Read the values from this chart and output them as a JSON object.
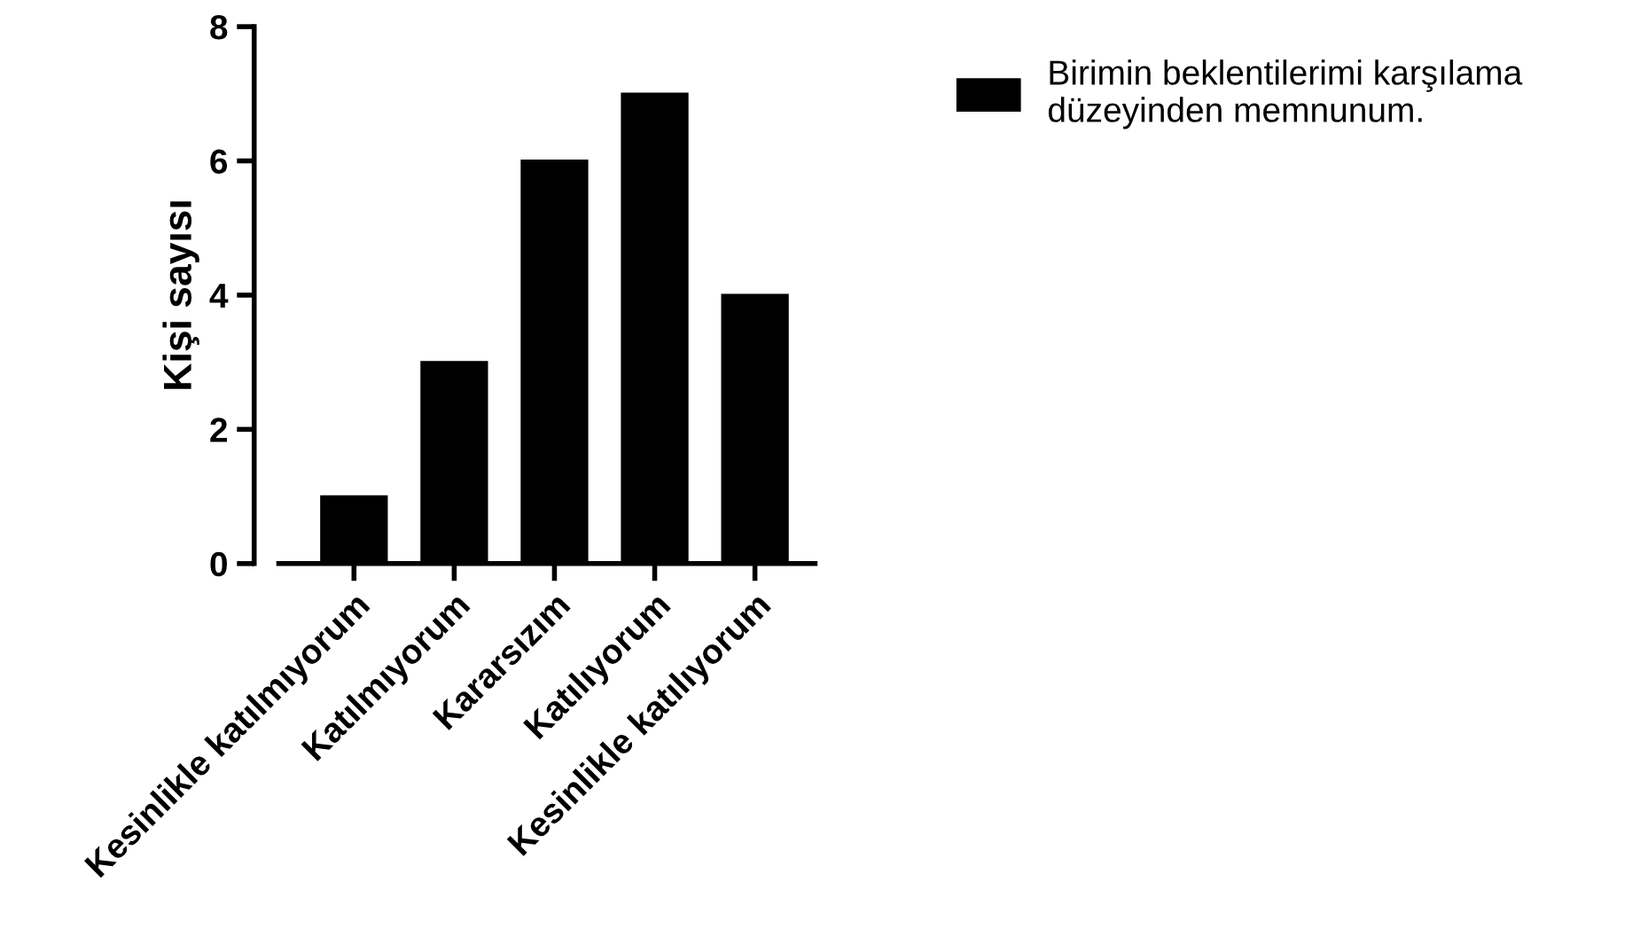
{
  "chart_data": {
    "type": "bar",
    "categories": [
      "Kesinlikle katılmıyorum",
      "Katılmıyorum",
      "Kararsızım",
      "Katılıyorum",
      "Kesinlikle katılıyorum"
    ],
    "series": [
      {
        "name": "Birimin beklentilerimi karşılama\ndüzeyinden memnunum.",
        "color": "#000000",
        "values": [
          1,
          3,
          6,
          7,
          4
        ]
      }
    ],
    "ylabel": "Kişi sayısı",
    "ylim": [
      0,
      8
    ],
    "yticks": [
      0,
      2,
      4,
      6,
      8
    ],
    "grid": false,
    "legend": "top right"
  }
}
